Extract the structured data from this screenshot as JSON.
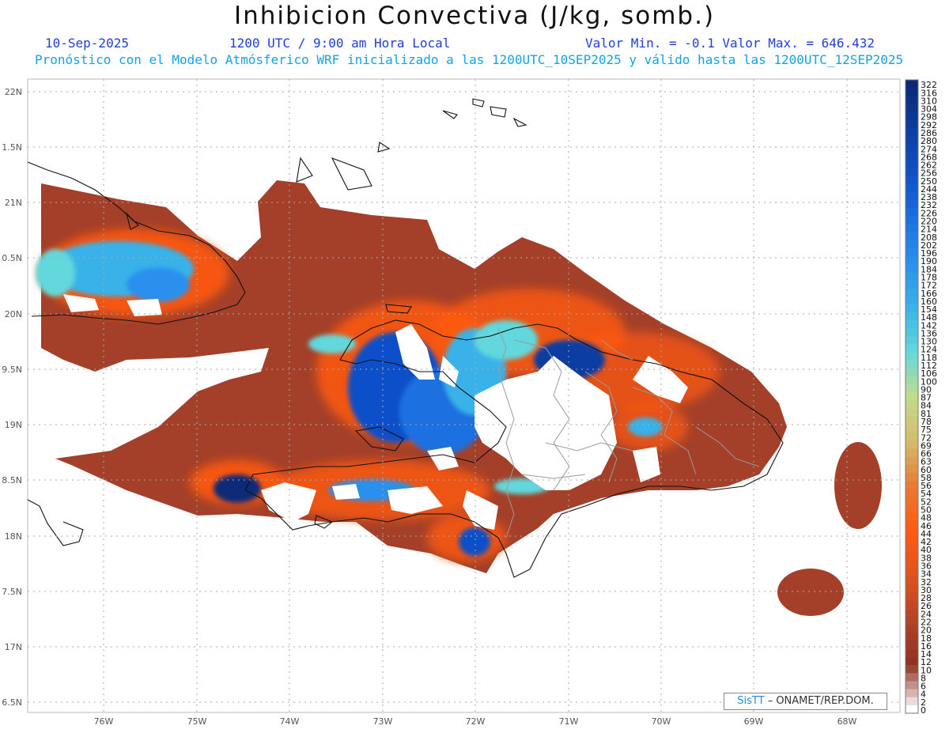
{
  "header": {
    "title": "Inhibicion Convectiva (J/kg, somb.)",
    "date": "10-Sep-2025",
    "time": "1200 UTC / 9:00 am Hora Local",
    "minmax": "Valor Min. = -0.1  Valor Max. = 646.432",
    "subtitle": "Pronóstico con el Modelo Atmósferico WRF inicializado a las 1200UTC_10SEP2025 y válido hasta las  1200UTC_12SEP2025"
  },
  "map": {
    "lat_labels": [
      "22N",
      "1.5N",
      "21N",
      "0.5N",
      "20N",
      "9.5N",
      "19N",
      "8.5N",
      "18N",
      "7.5N",
      "17N",
      "6.5N"
    ],
    "lon_labels": [
      "76W",
      "75W",
      "74W",
      "73W",
      "72W",
      "71W",
      "70W",
      "69W",
      "68W"
    ]
  },
  "colorbar": {
    "labels": [
      "322",
      "316",
      "310",
      "304",
      "298",
      "292",
      "286",
      "280",
      "274",
      "268",
      "262",
      "256",
      "250",
      "244",
      "238",
      "232",
      "226",
      "220",
      "214",
      "208",
      "202",
      "196",
      "190",
      "184",
      "178",
      "172",
      "166",
      "160",
      "154",
      "148",
      "142",
      "136",
      "130",
      "124",
      "118",
      "112",
      "106",
      "100",
      "90",
      "87",
      "84",
      "81",
      "78",
      "75",
      "72",
      "69",
      "66",
      "63",
      "60",
      "58",
      "56",
      "54",
      "52",
      "50",
      "48",
      "46",
      "44",
      "42",
      "40",
      "38",
      "36",
      "34",
      "32",
      "30",
      "28",
      "26",
      "24",
      "22",
      "20",
      "18",
      "16",
      "14",
      "12",
      "10",
      "8",
      "6",
      "4",
      "2",
      "0"
    ],
    "colors": [
      "#0a2a78",
      "#0c3da0",
      "#1050c8",
      "#1a70e0",
      "#2a90ee",
      "#38b2e8",
      "#62d8dc",
      "#c2dc8e",
      "#d4bc6a",
      "#e87a34",
      "#ff5a12",
      "#e0541e",
      "#b44428",
      "#8e3224",
      "#ffffff"
    ]
  },
  "credit": {
    "sis": "SisTT",
    "org": " – ONAMET/REP.DOM."
  }
}
